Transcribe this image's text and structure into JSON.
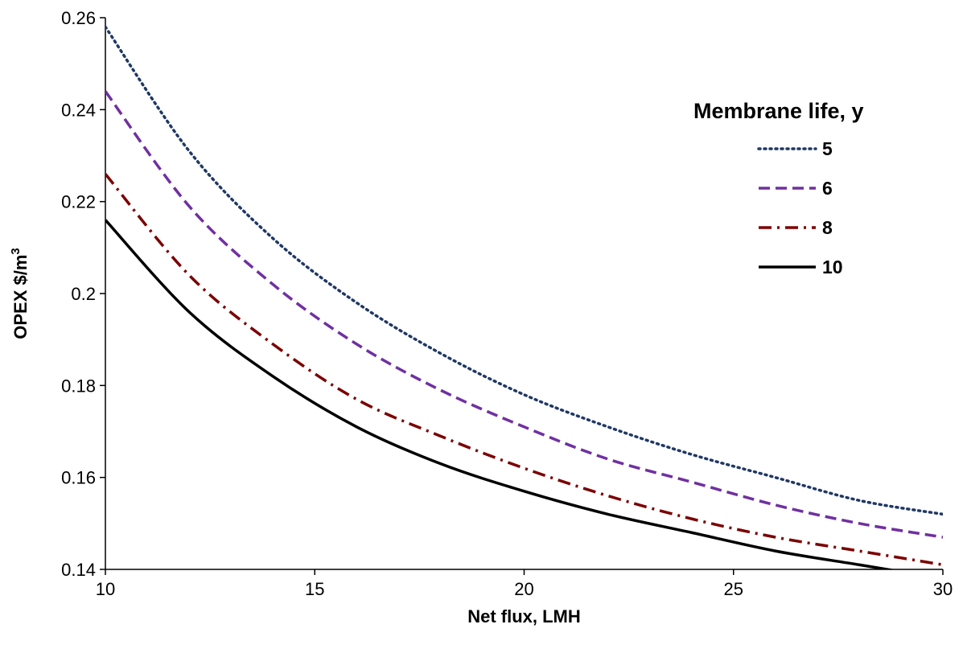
{
  "chart_data": {
    "type": "line",
    "title": "",
    "xlabel": "Net flux, LMH",
    "ylabel_main": "OPEX $/m",
    "ylabel_sup": "3",
    "xlim": [
      10,
      30
    ],
    "ylim": [
      0.14,
      0.26
    ],
    "xticks": [
      "10",
      "15",
      "20",
      "25",
      "30"
    ],
    "yticks": [
      "0.14",
      "0.16",
      "0.18",
      "0.2",
      "0.22",
      "0.24",
      "0.26"
    ],
    "grid": false,
    "legend_title": "Membrane life, y",
    "legend_position": "top-right",
    "x": [
      10,
      12,
      14,
      16,
      18,
      20,
      22,
      24,
      26,
      28,
      30
    ],
    "series": [
      {
        "name": "5",
        "color": "#1f3864",
        "dash": "dotted",
        "values": [
          0.258,
          0.231,
          0.212,
          0.198,
          0.187,
          0.178,
          0.171,
          0.165,
          0.16,
          0.155,
          0.152
        ]
      },
      {
        "name": "6",
        "color": "#7030a0",
        "dash": "dashed",
        "values": [
          0.244,
          0.219,
          0.202,
          0.189,
          0.179,
          0.171,
          0.164,
          0.159,
          0.154,
          0.15,
          0.147
        ]
      },
      {
        "name": "8",
        "color": "#7b0000",
        "dash": "dash-dot",
        "values": [
          0.226,
          0.204,
          0.189,
          0.177,
          0.169,
          0.162,
          0.156,
          0.151,
          0.147,
          0.144,
          0.141
        ]
      },
      {
        "name": "10",
        "color": "#000000",
        "dash": "solid",
        "values": [
          0.216,
          0.196,
          0.182,
          0.171,
          0.163,
          0.157,
          0.152,
          0.148,
          0.144,
          0.141,
          0.138
        ]
      }
    ]
  }
}
